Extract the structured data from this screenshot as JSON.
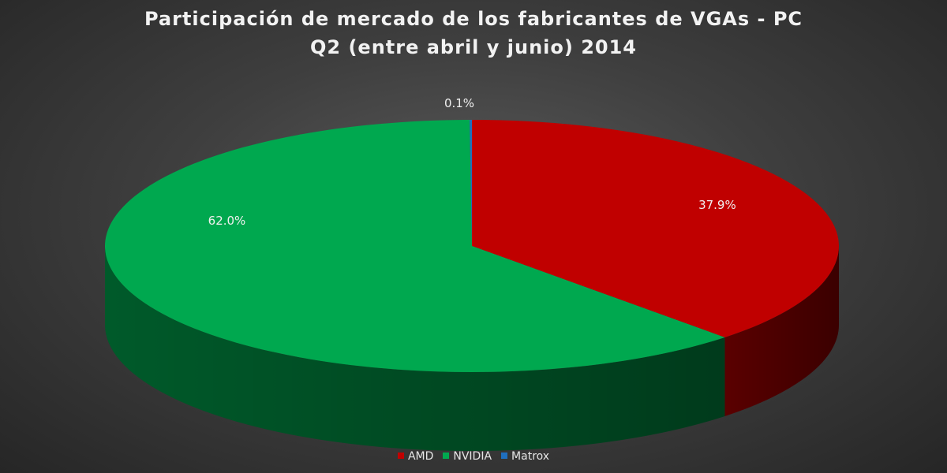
{
  "chart_data": {
    "type": "pie",
    "title_line1": "Participación de mercado de los fabricantes de VGAs - PC",
    "title_line2": "Q2 (entre abril y junio) 2014",
    "slices": [
      {
        "name": "AMD",
        "value": 37.9,
        "label": "37.9%",
        "color": "#c00000",
        "side_color": "#5a0000"
      },
      {
        "name": "NVIDIA",
        "value": 62.0,
        "label": "62.0%",
        "color": "#00a84f",
        "side_color": "#005a2a"
      },
      {
        "name": "Matrox",
        "value": 0.1,
        "label": "0.1%",
        "color": "#1f6fbf",
        "side_color": "#0e3a66"
      }
    ],
    "legend_position": "bottom",
    "style": "3d-pie"
  }
}
